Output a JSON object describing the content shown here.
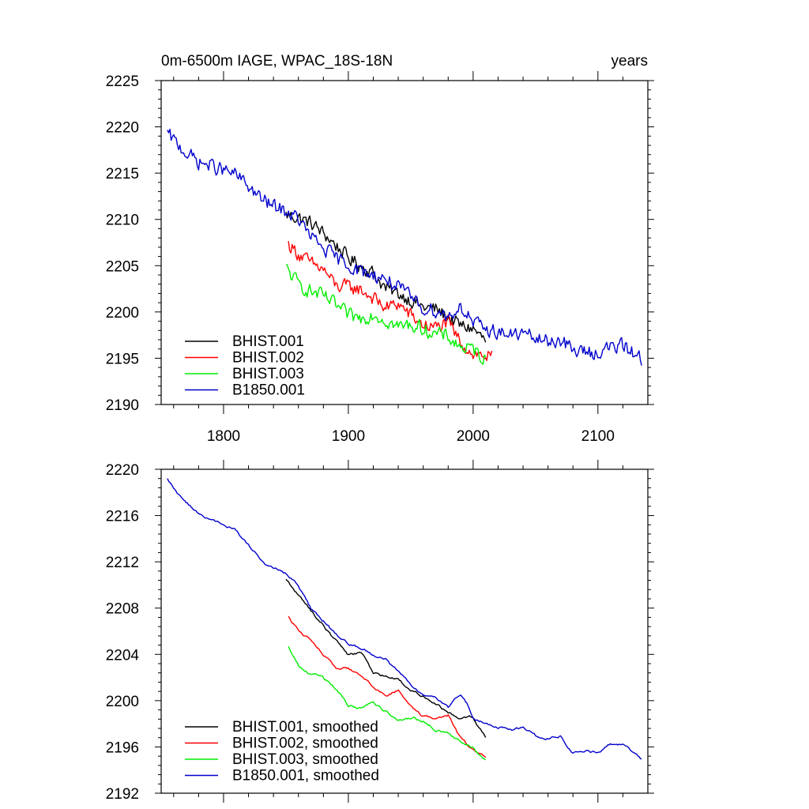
{
  "chart_data": [
    {
      "type": "line",
      "title": "0m-6500m IAGE, WPAC_18S-18N",
      "units": "years",
      "xlim": [
        1750,
        2140
      ],
      "ylim": [
        2190,
        2225
      ],
      "x_ticks": [
        1800,
        1900,
        2000,
        2100
      ],
      "x_tick_labels": [
        "1800",
        "1900",
        "2000",
        "2100"
      ],
      "y_ticks": [
        2190,
        2195,
        2200,
        2205,
        2210,
        2215,
        2220,
        2225
      ],
      "y_tick_labels": [
        "2190",
        "2195",
        "2200",
        "2205",
        "2210",
        "2215",
        "2220",
        "2225"
      ],
      "noisy": true,
      "legend_position": "bottom-left",
      "series": [
        {
          "name": "BHIST.001",
          "color": "#000000",
          "x": [
            1850,
            1860,
            1870,
            1880,
            1890,
            1900,
            1910,
            1920,
            1930,
            1940,
            1950,
            1960,
            1970,
            1980,
            1990,
            2000,
            2010
          ],
          "values": [
            2210.5,
            2210.2,
            2209.6,
            2208.5,
            2207.2,
            2205.8,
            2205.0,
            2204.2,
            2202.5,
            2202.0,
            2201.3,
            2200.5,
            2200.3,
            2199.4,
            2198.5,
            2198.2,
            2196.8
          ]
        },
        {
          "name": "BHIST.002",
          "color": "#ff0000",
          "x": [
            1852,
            1860,
            1870,
            1880,
            1890,
            1900,
            1910,
            1920,
            1930,
            1940,
            1950,
            1960,
            1970,
            1980,
            1990,
            2000,
            2015
          ],
          "values": [
            2207.3,
            2206.3,
            2205.2,
            2204.6,
            2202.8,
            2202.7,
            2202.4,
            2201.5,
            2200.4,
            2200.9,
            2199.6,
            2198.6,
            2198.3,
            2198.8,
            2196.7,
            2195.5,
            2195.1
          ]
        },
        {
          "name": "BHIST.003",
          "color": "#00ee00",
          "x": [
            1850,
            1860,
            1870,
            1880,
            1890,
            1900,
            1910,
            1920,
            1930,
            1940,
            1950,
            1960,
            1970,
            1980,
            1990,
            2000,
            2010
          ],
          "values": [
            2204.7,
            2203.0,
            2202.2,
            2201.7,
            2200.7,
            2199.6,
            2199.3,
            2199.8,
            2199.1,
            2198.4,
            2198.6,
            2198.2,
            2197.6,
            2197.3,
            2196.2,
            2195.9,
            2194.9
          ]
        },
        {
          "name": "B1850.001",
          "color": "#0000cc",
          "x": [
            1755,
            1770,
            1780,
            1790,
            1800,
            1810,
            1820,
            1830,
            1840,
            1850,
            1860,
            1870,
            1880,
            1890,
            1900,
            1910,
            1920,
            1930,
            1940,
            1950,
            1960,
            1970,
            1980,
            1990,
            1995,
            2000,
            2010,
            2020,
            2030,
            2040,
            2050,
            2060,
            2070,
            2080,
            2090,
            2100,
            2110,
            2120,
            2130,
            2135
          ],
          "values": [
            2219.2,
            2217.2,
            2216.2,
            2215.8,
            2215.3,
            2214.8,
            2213.6,
            2212.2,
            2211.4,
            2210.9,
            2210.0,
            2208.1,
            2206.9,
            2205.8,
            2205.1,
            2204.4,
            2204.0,
            2203.6,
            2202.6,
            2201.6,
            2200.4,
            2200.2,
            2199.5,
            2200.6,
            2199.8,
            2198.8,
            2198.1,
            2197.9,
            2197.5,
            2197.7,
            2197.1,
            2196.8,
            2197.0,
            2195.8,
            2195.7,
            2195.6,
            2196.2,
            2196.3,
            2195.5,
            2194.9
          ]
        }
      ]
    },
    {
      "type": "line",
      "title": "",
      "xlim": [
        1750,
        2140
      ],
      "ylim": [
        2192,
        2220
      ],
      "x_ticks": [
        1800,
        1900,
        2000,
        2100
      ],
      "y_ticks": [
        2192,
        2196,
        2200,
        2204,
        2208,
        2212,
        2216,
        2220
      ],
      "y_tick_labels": [
        "2192",
        "2196",
        "2200",
        "2204",
        "2208",
        "2212",
        "2216",
        "2220"
      ],
      "noisy": false,
      "legend_position": "bottom-left",
      "series": [
        {
          "name": "BHIST.001, smoothed",
          "color": "#000000",
          "x": [
            1850,
            1860,
            1870,
            1880,
            1890,
            1900,
            1910,
            1920,
            1930,
            1940,
            1950,
            1960,
            1970,
            1980,
            1990,
            2000,
            2010
          ],
          "values": [
            2210.5,
            2209.1,
            2207.8,
            2206.5,
            2205.2,
            2204.0,
            2204.2,
            2202.4,
            2202.1,
            2201.8,
            2200.8,
            2200.5,
            2199.8,
            2199.0,
            2198.4,
            2198.6,
            2196.8
          ]
        },
        {
          "name": "BHIST.002, smoothed",
          "color": "#ff0000",
          "x": [
            1852,
            1860,
            1870,
            1880,
            1890,
            1900,
            1910,
            1920,
            1930,
            1940,
            1950,
            1960,
            1970,
            1980,
            1990,
            2000,
            2010
          ],
          "values": [
            2207.3,
            2206.0,
            2205.3,
            2204.1,
            2202.7,
            2202.7,
            2202.3,
            2201.3,
            2200.4,
            2200.9,
            2199.4,
            2198.6,
            2198.5,
            2198.8,
            2196.7,
            2195.6,
            2195.1
          ]
        },
        {
          "name": "BHIST.003, smoothed",
          "color": "#00ee00",
          "x": [
            1852,
            1860,
            1870,
            1880,
            1890,
            1900,
            1910,
            1920,
            1930,
            1940,
            1950,
            1960,
            1970,
            1980,
            1990,
            2000,
            2010
          ],
          "values": [
            2204.7,
            2203.0,
            2202.3,
            2201.9,
            2201.0,
            2199.6,
            2199.3,
            2199.9,
            2199.1,
            2198.4,
            2198.6,
            2198.3,
            2197.6,
            2197.2,
            2196.3,
            2195.9,
            2194.9
          ]
        },
        {
          "name": "B1850.001, smoothed",
          "color": "#0000cc",
          "x": [
            1755,
            1770,
            1780,
            1790,
            1800,
            1810,
            1820,
            1830,
            1840,
            1850,
            1860,
            1870,
            1880,
            1890,
            1900,
            1910,
            1920,
            1930,
            1940,
            1950,
            1960,
            1970,
            1980,
            1990,
            1995,
            2000,
            2010,
            2020,
            2030,
            2040,
            2050,
            2060,
            2070,
            2080,
            2090,
            2100,
            2110,
            2120,
            2130,
            2135
          ],
          "values": [
            2219.2,
            2217.0,
            2216.2,
            2215.7,
            2215.2,
            2214.7,
            2213.4,
            2212.1,
            2211.3,
            2210.9,
            2209.9,
            2207.9,
            2206.9,
            2205.8,
            2205.0,
            2204.4,
            2204.0,
            2203.6,
            2202.4,
            2201.4,
            2200.4,
            2200.2,
            2199.4,
            2200.6,
            2199.8,
            2198.6,
            2198.0,
            2197.8,
            2197.4,
            2197.6,
            2196.9,
            2196.8,
            2196.9,
            2195.4,
            2195.6,
            2195.5,
            2196.2,
            2196.2,
            2195.4,
            2194.9
          ]
        }
      ]
    }
  ]
}
